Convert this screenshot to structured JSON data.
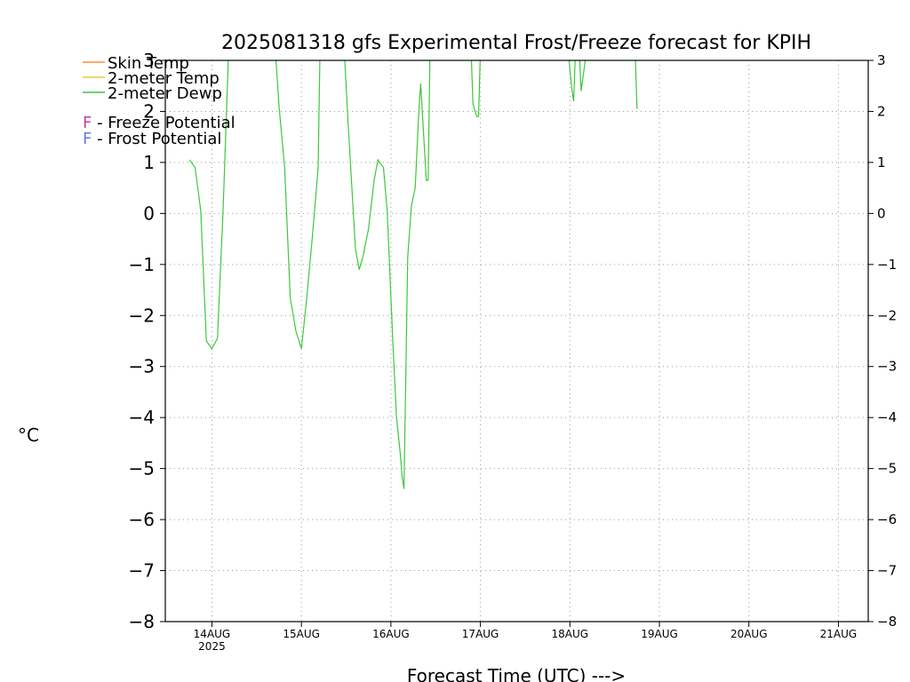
{
  "chart_data": {
    "type": "line",
    "title": "2025081318 gfs Experimental Frost/Freeze forecast for KPIH",
    "xlabel": "Forecast Time (UTC) --->",
    "ylabel": "°C",
    "ylim": [
      -8,
      3
    ],
    "xlim_hours": [
      -6.5,
      182
    ],
    "yticks": [
      -8,
      -7,
      -6,
      -5,
      -4,
      -3,
      -2,
      -1,
      0,
      1,
      2,
      3
    ],
    "grid": true,
    "legend_placement": "top-left",
    "xticks": [
      {
        "hour": 6,
        "label": "14AUG",
        "sublabel": "2025"
      },
      {
        "hour": 30,
        "label": "15AUG",
        "sublabel": ""
      },
      {
        "hour": 54,
        "label": "16AUG",
        "sublabel": ""
      },
      {
        "hour": 78,
        "label": "17AUG",
        "sublabel": ""
      },
      {
        "hour": 102,
        "label": "18AUG",
        "sublabel": ""
      },
      {
        "hour": 126,
        "label": "19AUG",
        "sublabel": ""
      },
      {
        "hour": 150,
        "label": "20AUG",
        "sublabel": ""
      },
      {
        "hour": 174,
        "label": "21AUG",
        "sublabel": ""
      }
    ],
    "legend": [
      {
        "label": "Skin Temp",
        "color": "#ff8c3c"
      },
      {
        "label": "2-meter Temp",
        "color": "#e6c83c"
      },
      {
        "label": "2-meter Dewp",
        "color": "#3cc83c"
      }
    ],
    "potential_legend": [
      {
        "letter": "F",
        "label": " - Freeze Potential",
        "color": "#c83c9a"
      },
      {
        "letter": "F",
        "label": " - Frost Potential",
        "color": "#6478e6"
      }
    ],
    "series": [
      {
        "name": "2-meter Dewp",
        "color": "#3cc83c",
        "segments": [
          [
            [
              0,
              1.05
            ],
            [
              1.5,
              0.9
            ],
            [
              3,
              0.05
            ],
            [
              4.5,
              -2.5
            ],
            [
              6,
              -2.65
            ],
            [
              7.5,
              -2.45
            ],
            [
              9,
              0.05
            ],
            [
              10.5,
              3.2
            ]
          ],
          [
            [
              23,
              3.2
            ],
            [
              24,
              2.1
            ],
            [
              25.5,
              0.9
            ],
            [
              27,
              -1.65
            ],
            [
              28.5,
              -2.3
            ],
            [
              30,
              -2.65
            ],
            [
              31.5,
              -1.6
            ],
            [
              33,
              -0.4
            ],
            [
              34.5,
              0.9
            ],
            [
              35,
              3.2
            ]
          ],
          [
            [
              41.5,
              3.2
            ],
            [
              42.5,
              1.8
            ],
            [
              44.5,
              -0.7
            ],
            [
              45.5,
              -1.1
            ],
            [
              46.5,
              -0.85
            ],
            [
              48,
              -0.3
            ],
            [
              49.5,
              0.65
            ],
            [
              50.5,
              1.05
            ],
            [
              52,
              0.9
            ],
            [
              53,
              0.05
            ],
            [
              54.5,
              -2.5
            ],
            [
              55.5,
              -4.0
            ],
            [
              56.5,
              -4.7
            ],
            [
              57,
              -5.15
            ],
            [
              57.5,
              -5.4
            ],
            [
              58.5,
              -0.85
            ],
            [
              59.5,
              0.15
            ],
            [
              60.5,
              0.5
            ],
            [
              61.5,
              2.0
            ],
            [
              62,
              2.55
            ],
            [
              62.5,
              1.9
            ],
            [
              63.5,
              0.65
            ],
            [
              64,
              0.65
            ],
            [
              64.5,
              3.2
            ]
          ],
          [
            [
              75.5,
              3.2
            ],
            [
              76,
              2.15
            ],
            [
              77,
              1.9
            ],
            [
              77.5,
              1.9
            ],
            [
              78,
              3.2
            ]
          ],
          [
            [
              101.5,
              3.2
            ],
            [
              102.5,
              2.45
            ],
            [
              103,
              2.2
            ],
            [
              103.5,
              3.2
            ]
          ],
          [
            [
              104.5,
              3.2
            ],
            [
              105,
              2.4
            ],
            [
              106.5,
              3.2
            ]
          ],
          [
            [
              119.5,
              3.2
            ],
            [
              120,
              2.05
            ]
          ]
        ]
      }
    ]
  }
}
